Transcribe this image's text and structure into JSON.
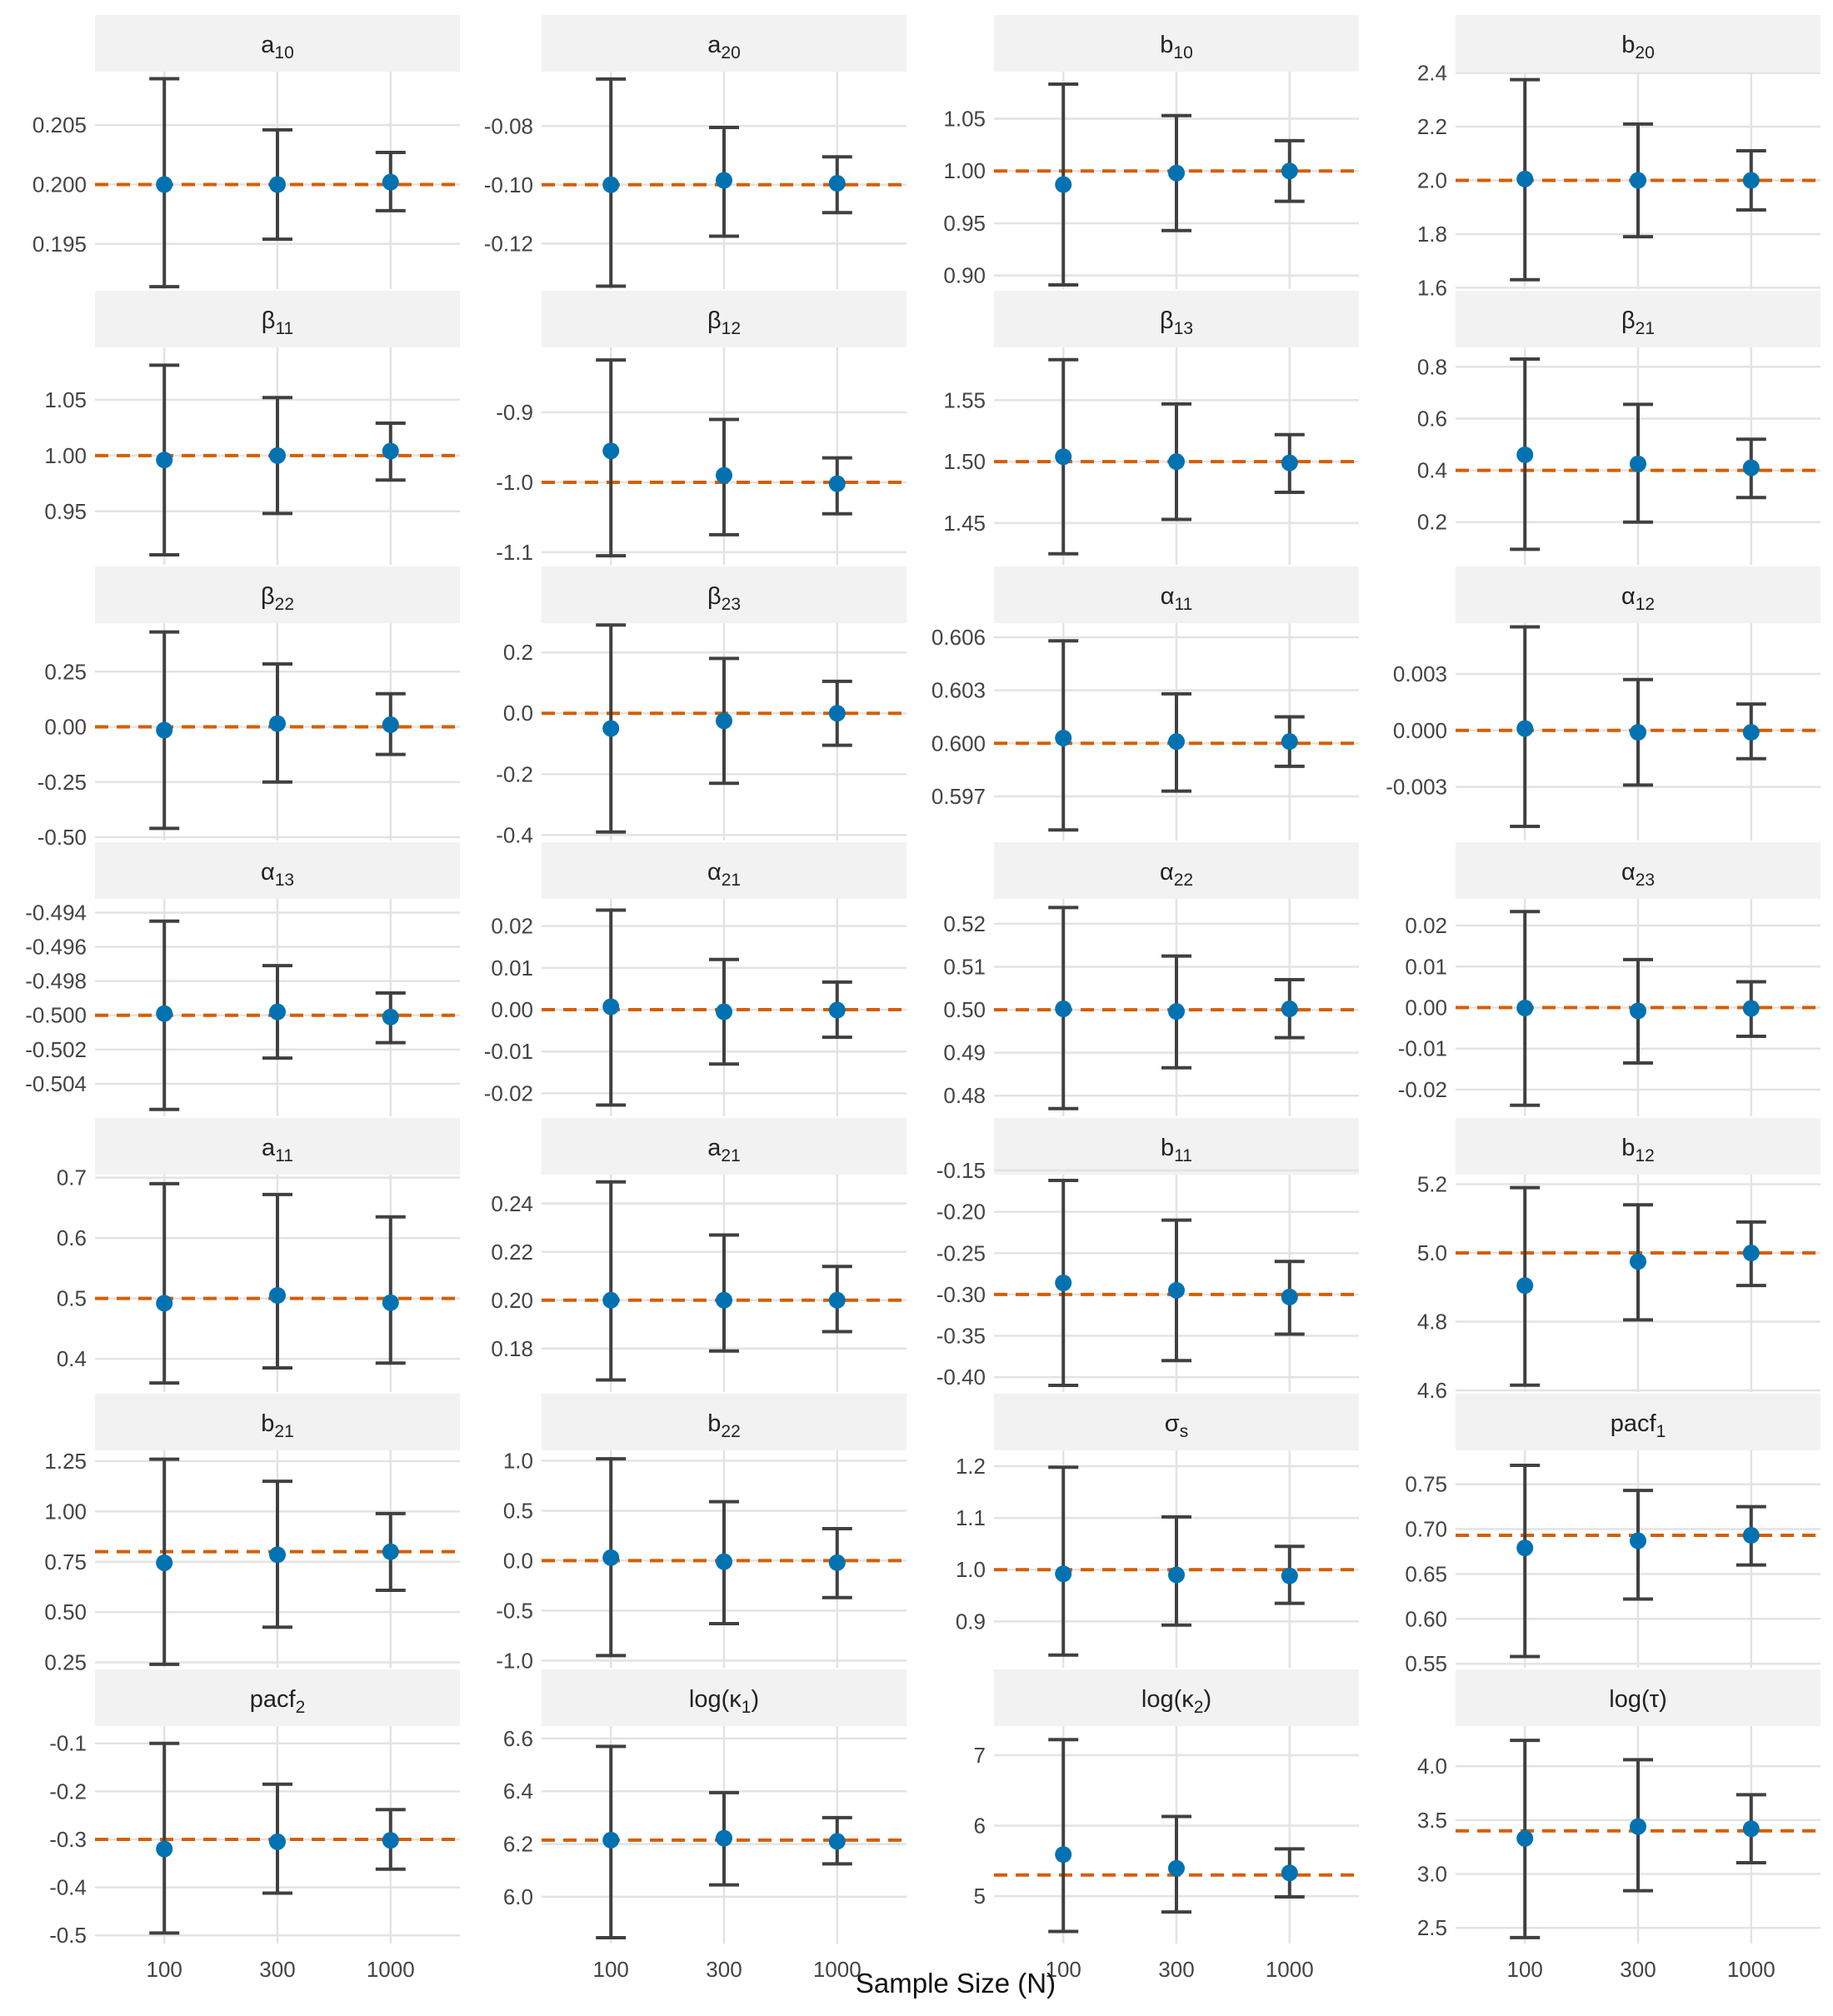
{
  "colors": {
    "point": "#0072B2",
    "reference": "#D55E00",
    "errorbar": "#404040",
    "strip": "#f2f2f2",
    "grid": "#e3e3e3"
  },
  "chart_data": {
    "type": "scatter",
    "xlabel": "Sample Size (N)",
    "x_categories": [
      "100",
      "300",
      "1000"
    ],
    "legend": "none",
    "grid": true,
    "ncol": 4,
    "panels": [
      {
        "label": "a",
        "sub": "10",
        "ylim": [
          0.1912,
          0.2095
        ],
        "yticks": [
          "0.195",
          "0.200",
          "0.205"
        ],
        "true_value": 0.2,
        "estimates": [
          {
            "x": "100",
            "mean": 0.2,
            "lower": 0.1914,
            "upper": 0.2089
          },
          {
            "x": "300",
            "mean": 0.2,
            "lower": 0.1954,
            "upper": 0.2046
          },
          {
            "x": "1000",
            "mean": 0.2002,
            "lower": 0.1978,
            "upper": 0.2027
          }
        ]
      },
      {
        "label": "a",
        "sub": "20",
        "ylim": [
          -0.1355,
          -0.0615
        ],
        "yticks": [
          "-0.08",
          "-0.10",
          "-0.12"
        ],
        "true_value": -0.1,
        "estimates": [
          {
            "x": "100",
            "mean": -0.1,
            "lower": -0.1345,
            "upper": -0.064
          },
          {
            "x": "300",
            "mean": -0.0985,
            "lower": -0.1175,
            "upper": -0.0805
          },
          {
            "x": "1000",
            "mean": -0.0995,
            "lower": -0.1095,
            "upper": -0.0905
          }
        ]
      },
      {
        "label": "b",
        "sub": "10",
        "ylim": [
          0.887,
          1.095
        ],
        "yticks": [
          "0.90",
          "0.95",
          "1.00",
          "1.05"
        ],
        "true_value": 1.0,
        "estimates": [
          {
            "x": "100",
            "mean": 0.987,
            "lower": 0.891,
            "upper": 1.083
          },
          {
            "x": "300",
            "mean": 0.998,
            "lower": 0.943,
            "upper": 1.053
          },
          {
            "x": "1000",
            "mean": 1.0,
            "lower": 0.971,
            "upper": 1.029
          }
        ]
      },
      {
        "label": "b",
        "sub": "20",
        "ylim": [
          1.595,
          2.405
        ],
        "yticks": [
          "1.6",
          "1.8",
          "2.0",
          "2.2",
          "2.4"
        ],
        "true_value": 2.0,
        "estimates": [
          {
            "x": "100",
            "mean": 2.005,
            "lower": 1.63,
            "upper": 2.375
          },
          {
            "x": "300",
            "mean": 2.0,
            "lower": 1.79,
            "upper": 2.21
          },
          {
            "x": "1000",
            "mean": 2.0,
            "lower": 1.89,
            "upper": 2.11
          }
        ]
      },
      {
        "label": "β",
        "sub": "11",
        "ylim": [
          0.902,
          1.097
        ],
        "yticks": [
          "0.95",
          "1.00",
          "1.05"
        ],
        "true_value": 1.0,
        "estimates": [
          {
            "x": "100",
            "mean": 0.996,
            "lower": 0.911,
            "upper": 1.081
          },
          {
            "x": "300",
            "mean": 1.0,
            "lower": 0.948,
            "upper": 1.052
          },
          {
            "x": "1000",
            "mean": 1.004,
            "lower": 0.978,
            "upper": 1.029
          }
        ]
      },
      {
        "label": "β",
        "sub": "12",
        "ylim": [
          -1.118,
          -0.807
        ],
        "yticks": [
          "-0.9",
          "-1.0",
          "-1.1"
        ],
        "true_value": -1.0,
        "estimates": [
          {
            "x": "100",
            "mean": -0.955,
            "lower": -1.105,
            "upper": -0.825
          },
          {
            "x": "300",
            "mean": -0.99,
            "lower": -1.075,
            "upper": -0.91
          },
          {
            "x": "1000",
            "mean": -1.002,
            "lower": -1.045,
            "upper": -0.965
          }
        ]
      },
      {
        "label": "β",
        "sub": "13",
        "ylim": [
          1.416,
          1.593
        ],
        "yticks": [
          "1.45",
          "1.50",
          "1.55"
        ],
        "true_value": 1.5,
        "estimates": [
          {
            "x": "100",
            "mean": 1.504,
            "lower": 1.425,
            "upper": 1.583
          },
          {
            "x": "300",
            "mean": 1.5,
            "lower": 1.453,
            "upper": 1.547
          },
          {
            "x": "1000",
            "mean": 1.499,
            "lower": 1.475,
            "upper": 1.522
          }
        ]
      },
      {
        "label": "β",
        "sub": "21",
        "ylim": [
          0.035,
          0.875
        ],
        "yticks": [
          "0.2",
          "0.4",
          "0.6",
          "0.8"
        ],
        "true_value": 0.4,
        "estimates": [
          {
            "x": "100",
            "mean": 0.46,
            "lower": 0.095,
            "upper": 0.83
          },
          {
            "x": "300",
            "mean": 0.425,
            "lower": 0.2,
            "upper": 0.655
          },
          {
            "x": "1000",
            "mean": 0.41,
            "lower": 0.295,
            "upper": 0.52
          }
        ]
      },
      {
        "label": "β",
        "sub": "22",
        "ylim": [
          -0.515,
          0.47
        ],
        "yticks": [
          "-0.50",
          "-0.25",
          "0.00",
          "0.25"
        ],
        "true_value": 0.0,
        "estimates": [
          {
            "x": "100",
            "mean": -0.015,
            "lower": -0.46,
            "upper": 0.43
          },
          {
            "x": "300",
            "mean": 0.015,
            "lower": -0.25,
            "upper": 0.285
          },
          {
            "x": "1000",
            "mean": 0.01,
            "lower": -0.125,
            "upper": 0.15
          }
        ]
      },
      {
        "label": "β",
        "sub": "23",
        "ylim": [
          -0.418,
          0.296
        ],
        "yticks": [
          "-0.4",
          "-0.2",
          "0.0",
          "0.2"
        ],
        "true_value": 0.0,
        "estimates": [
          {
            "x": "100",
            "mean": -0.05,
            "lower": -0.39,
            "upper": 0.29
          },
          {
            "x": "300",
            "mean": -0.025,
            "lower": -0.23,
            "upper": 0.18
          },
          {
            "x": "1000",
            "mean": 0.0,
            "lower": -0.105,
            "upper": 0.105
          }
        ]
      },
      {
        "label": "α",
        "sub": "11",
        "ylim": [
          0.5945,
          0.6068
        ],
        "yticks": [
          "0.597",
          "0.600",
          "0.603",
          "0.606"
        ],
        "true_value": 0.6,
        "estimates": [
          {
            "x": "100",
            "mean": 0.6003,
            "lower": 0.5951,
            "upper": 0.6058
          },
          {
            "x": "300",
            "mean": 0.6001,
            "lower": 0.5973,
            "upper": 0.6028
          },
          {
            "x": "1000",
            "mean": 0.6001,
            "lower": 0.5987,
            "upper": 0.6015
          }
        ]
      },
      {
        "label": "α",
        "sub": "12",
        "ylim": [
          -0.00585,
          0.0057
        ],
        "yticks": [
          "-0.003",
          "0.000",
          "0.003"
        ],
        "true_value": 0.0,
        "estimates": [
          {
            "x": "100",
            "mean": 0.0001,
            "lower": -0.0051,
            "upper": 0.0055
          },
          {
            "x": "300",
            "mean": -0.0001,
            "lower": -0.0029,
            "upper": 0.0027
          },
          {
            "x": "1000",
            "mean": -0.0001,
            "lower": -0.0015,
            "upper": 0.0014
          }
        ]
      },
      {
        "label": "α",
        "sub": "13",
        "ylim": [
          -0.5059,
          -0.4932
        ],
        "yticks": [
          "-0.504",
          "-0.502",
          "-0.500",
          "-0.498",
          "-0.496",
          "-0.494"
        ],
        "true_value": -0.5,
        "estimates": [
          {
            "x": "100",
            "mean": -0.4999,
            "lower": -0.5055,
            "upper": -0.4945
          },
          {
            "x": "300",
            "mean": -0.4998,
            "lower": -0.5025,
            "upper": -0.4971
          },
          {
            "x": "1000",
            "mean": -0.5001,
            "lower": -0.5016,
            "upper": -0.4987
          }
        ]
      },
      {
        "label": "α",
        "sub": "21",
        "ylim": [
          -0.0255,
          0.0265
        ],
        "yticks": [
          "-0.02",
          "-0.01",
          "0.00",
          "0.01",
          "0.02"
        ],
        "true_value": 0.0,
        "estimates": [
          {
            "x": "100",
            "mean": 0.0007,
            "lower": -0.0228,
            "upper": 0.0238
          },
          {
            "x": "300",
            "mean": -0.0005,
            "lower": -0.013,
            "upper": 0.012
          },
          {
            "x": "1000",
            "mean": -0.0001,
            "lower": -0.0066,
            "upper": 0.0066
          }
        ]
      },
      {
        "label": "α",
        "sub": "22",
        "ylim": [
          0.4752,
          0.5258
        ],
        "yticks": [
          "0.48",
          "0.49",
          "0.50",
          "0.51",
          "0.52"
        ],
        "true_value": 0.5,
        "estimates": [
          {
            "x": "100",
            "mean": 0.5002,
            "lower": 0.477,
            "upper": 0.5238
          },
          {
            "x": "300",
            "mean": 0.4996,
            "lower": 0.4865,
            "upper": 0.5125
          },
          {
            "x": "1000",
            "mean": 0.5002,
            "lower": 0.4935,
            "upper": 0.507
          }
        ]
      },
      {
        "label": "α",
        "sub": "23",
        "ylim": [
          -0.0265,
          0.0265
        ],
        "yticks": [
          "-0.02",
          "-0.01",
          "0.00",
          "0.01",
          "0.02"
        ],
        "true_value": 0.0,
        "estimates": [
          {
            "x": "100",
            "mean": -0.0001,
            "lower": -0.0238,
            "upper": 0.0234
          },
          {
            "x": "300",
            "mean": -0.0008,
            "lower": -0.0135,
            "upper": 0.0117
          },
          {
            "x": "1000",
            "mean": -0.0002,
            "lower": -0.007,
            "upper": 0.0063
          }
        ]
      },
      {
        "label": "a",
        "sub": "11",
        "ylim": [
          0.345,
          0.705
        ],
        "yticks": [
          "0.4",
          "0.5",
          "0.6",
          "0.7"
        ],
        "true_value": 0.5,
        "estimates": [
          {
            "x": "100",
            "mean": 0.492,
            "lower": 0.36,
            "upper": 0.69
          },
          {
            "x": "300",
            "mean": 0.505,
            "lower": 0.385,
            "upper": 0.672
          },
          {
            "x": "1000",
            "mean": 0.493,
            "lower": 0.393,
            "upper": 0.635
          }
        ]
      },
      {
        "label": "a",
        "sub": "21",
        "ylim": [
          0.162,
          0.252
        ],
        "yticks": [
          "0.18",
          "0.20",
          "0.22",
          "0.24"
        ],
        "true_value": 0.2,
        "estimates": [
          {
            "x": "100",
            "mean": 0.2,
            "lower": 0.167,
            "upper": 0.249
          },
          {
            "x": "300",
            "mean": 0.2,
            "lower": 0.179,
            "upper": 0.227
          },
          {
            "x": "1000",
            "mean": 0.2,
            "lower": 0.187,
            "upper": 0.214
          }
        ]
      },
      {
        "label": "b",
        "sub": "11",
        "ylim": [
          -0.418,
          -0.155
        ],
        "yticks": [
          "-0.40",
          "-0.35",
          "-0.30",
          "-0.25",
          "-0.20",
          "-0.15"
        ],
        "true_value": -0.3,
        "estimates": [
          {
            "x": "100",
            "mean": -0.286,
            "lower": -0.41,
            "upper": -0.162
          },
          {
            "x": "300",
            "mean": -0.295,
            "lower": -0.38,
            "upper": -0.21
          },
          {
            "x": "1000",
            "mean": -0.303,
            "lower": -0.348,
            "upper": -0.26
          }
        ]
      },
      {
        "label": "b",
        "sub": "12",
        "ylim": [
          4.595,
          5.228
        ],
        "yticks": [
          "4.6",
          "4.8",
          "5.0",
          "5.2"
        ],
        "true_value": 5.0,
        "estimates": [
          {
            "x": "100",
            "mean": 4.905,
            "lower": 4.615,
            "upper": 5.19
          },
          {
            "x": "300",
            "mean": 4.975,
            "lower": 4.805,
            "upper": 5.14
          },
          {
            "x": "1000",
            "mean": 5.0,
            "lower": 4.905,
            "upper": 5.09
          }
        ]
      },
      {
        "label": "b",
        "sub": "21",
        "ylim": [
          0.223,
          1.304
        ],
        "yticks": [
          "0.25",
          "0.50",
          "0.75",
          "1.00",
          "1.25"
        ],
        "true_value": 0.8,
        "estimates": [
          {
            "x": "100",
            "mean": 0.745,
            "lower": 0.24,
            "upper": 1.26
          },
          {
            "x": "300",
            "mean": 0.785,
            "lower": 0.425,
            "upper": 1.15
          },
          {
            "x": "1000",
            "mean": 0.8,
            "lower": 0.608,
            "upper": 0.99
          }
        ]
      },
      {
        "label": "b",
        "sub": "22",
        "ylim": [
          -1.072,
          1.104
        ],
        "yticks": [
          "-1.0",
          "-0.5",
          "0.0",
          "0.5",
          "1.0"
        ],
        "true_value": 0.0,
        "estimates": [
          {
            "x": "100",
            "mean": 0.03,
            "lower": -0.95,
            "upper": 1.02
          },
          {
            "x": "300",
            "mean": -0.01,
            "lower": -0.63,
            "upper": 0.59
          },
          {
            "x": "1000",
            "mean": -0.02,
            "lower": -0.37,
            "upper": 0.32
          }
        ]
      },
      {
        "label": "σ",
        "sub": "s",
        "ylim": [
          0.8105,
          1.2305
        ],
        "yticks": [
          "0.9",
          "1.0",
          "1.1",
          "1.2"
        ],
        "true_value": 1.0,
        "estimates": [
          {
            "x": "100",
            "mean": 0.992,
            "lower": 0.835,
            "upper": 1.198
          },
          {
            "x": "300",
            "mean": 0.99,
            "lower": 0.893,
            "upper": 1.102
          },
          {
            "x": "1000",
            "mean": 0.988,
            "lower": 0.935,
            "upper": 1.045
          }
        ]
      },
      {
        "label": "pacf",
        "sub": "1",
        "ylim": [
          0.5455,
          0.7877
        ],
        "yticks": [
          "0.55",
          "0.60",
          "0.65",
          "0.70",
          "0.75"
        ],
        "true_value": 0.693,
        "estimates": [
          {
            "x": "100",
            "mean": 0.679,
            "lower": 0.558,
            "upper": 0.771
          },
          {
            "x": "300",
            "mean": 0.687,
            "lower": 0.622,
            "upper": 0.743
          },
          {
            "x": "1000",
            "mean": 0.693,
            "lower": 0.66,
            "upper": 0.725
          }
        ]
      },
      {
        "label": "pacf",
        "sub": "2",
        "ylim": [
          -0.517,
          -0.064
        ],
        "yticks": [
          "-0.5",
          "-0.4",
          "-0.3",
          "-0.2",
          "-0.1"
        ],
        "true_value": -0.3,
        "estimates": [
          {
            "x": "100",
            "mean": -0.32,
            "lower": -0.495,
            "upper": -0.1
          },
          {
            "x": "300",
            "mean": -0.305,
            "lower": -0.412,
            "upper": -0.185
          },
          {
            "x": "1000",
            "mean": -0.302,
            "lower": -0.362,
            "upper": -0.238
          }
        ]
      },
      {
        "label": "log(κ",
        "sub": "1",
        "tail": ")",
        "ylim": [
          5.823,
          6.647
        ],
        "yticks": [
          "6.0",
          "6.2",
          "6.4",
          "6.6"
        ],
        "true_value": 6.215,
        "estimates": [
          {
            "x": "100",
            "mean": 6.215,
            "lower": 5.845,
            "upper": 6.57
          },
          {
            "x": "300",
            "mean": 6.222,
            "lower": 6.045,
            "upper": 6.395
          },
          {
            "x": "1000",
            "mean": 6.21,
            "lower": 6.125,
            "upper": 6.3
          }
        ]
      },
      {
        "label": "log(κ",
        "sub": "2",
        "tail": ")",
        "ylim": [
          4.328,
          7.412
        ],
        "yticks": [
          "5",
          "6",
          "7"
        ],
        "true_value": 5.3,
        "estimates": [
          {
            "x": "100",
            "mean": 5.59,
            "lower": 4.5,
            "upper": 7.22
          },
          {
            "x": "300",
            "mean": 5.395,
            "lower": 4.775,
            "upper": 6.13
          },
          {
            "x": "1000",
            "mean": 5.33,
            "lower": 4.99,
            "upper": 5.67
          }
        ]
      },
      {
        "label": "log(τ)",
        "sub": "",
        "ylim": [
          2.355,
          4.372
        ],
        "yticks": [
          "2.5",
          "3.0",
          "3.5",
          "4.0"
        ],
        "true_value": 3.4,
        "estimates": [
          {
            "x": "100",
            "mean": 3.33,
            "lower": 2.41,
            "upper": 4.24
          },
          {
            "x": "300",
            "mean": 3.44,
            "lower": 2.845,
            "upper": 4.06
          },
          {
            "x": "1000",
            "mean": 3.42,
            "lower": 3.105,
            "upper": 3.735
          }
        ]
      }
    ]
  }
}
